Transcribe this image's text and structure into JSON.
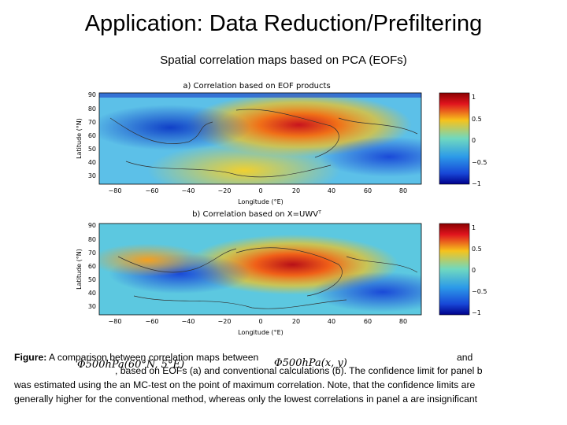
{
  "slide": {
    "title": "Application: Data Reduction/Prefiltering",
    "subtitle": "Spatial correlation maps based on PCA (EOFs)"
  },
  "panels": [
    {
      "title": "a) Correlation based on EOF products",
      "ylabel": "Latitude (°N)",
      "xlabel": "Longitude (°E)"
    },
    {
      "title": "b) Correlation based on X=UWVᵀ",
      "ylabel": "Latitude (°N)",
      "xlabel": "Longitude (°E)"
    }
  ],
  "axes": {
    "lat_ticks": [
      "90",
      "80",
      "70",
      "60",
      "50",
      "40",
      "30"
    ],
    "lon_ticks": [
      "−80",
      "−60",
      "−40",
      "−20",
      "0",
      "20",
      "40",
      "60",
      "80"
    ],
    "colorbar_ticks": [
      "1",
      "0.5",
      "0",
      "−0.5",
      "−1"
    ]
  },
  "colors": {
    "high": "#c8141e",
    "mid_high": "#f0c020",
    "mid": "#6fd0c8",
    "low": "#1650d8",
    "very_low": "#00009a"
  },
  "caption": {
    "label": "Figure:",
    "line1_a": "A comparison between correlation maps between",
    "sym1": "Φ500hPa(60°N, 5°E)",
    "sym2": "Φ500hPa(x, y)",
    "line1_b": "and",
    "line2": ", based on EOFs (a) and conventional calculations (b). The confidence limit for panel b",
    "line3": "was estimated using the an MC-test on the point of maximum correlation. Note, that the confidence limits are",
    "line4": "generally higher for the conventional method, whereas only the lowest correlations in panel a are insignificant"
  }
}
